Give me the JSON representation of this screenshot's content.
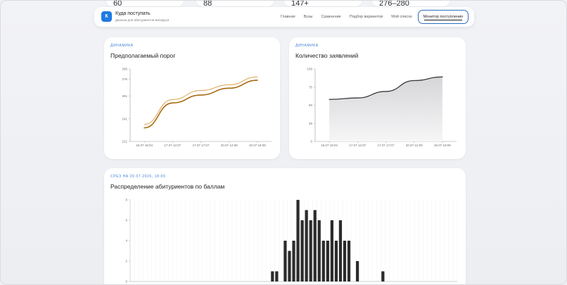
{
  "stats": [
    "60",
    "88",
    "147+",
    "276–280"
  ],
  "nav": {
    "logo_letter": "К",
    "title": "Куда поступать",
    "subtitle": "Данные для абитуриентов Беларуси",
    "links": [
      "Главная",
      "Вузы",
      "Сравнение",
      "Подбор вариантов",
      "Мой список"
    ],
    "active": "Монитор поступления"
  },
  "card1": {
    "eyebrow": "Динамика",
    "title": "Предполагаемый порог"
  },
  "card2": {
    "eyebrow": "Динамика",
    "title": "Количество заявлений"
  },
  "card3": {
    "eyebrow": "Срез на 20.07.2026, 18:09",
    "title": "Распределение абитуриентов по баллам"
  },
  "colors": {
    "accent": "#2a6fbf",
    "threshold_dark": "#a66a10",
    "threshold_light": "#d9a24e",
    "apps_line": "#3a3a3a",
    "bars": "#2b2b2b"
  },
  "chart_data": [
    {
      "type": "line",
      "title": "Предполагаемый порог",
      "x": [
        "16.07 18:04",
        "17.07 12:07",
        "17.07 17:07",
        "20.07 12:09",
        "20.07 18:09"
      ],
      "y_ticks": [
        221,
        241,
        261,
        276,
        285
      ],
      "ylim": [
        221,
        285
      ],
      "series": [
        {
          "values": [
            236,
            258,
            266,
            271,
            278
          ]
        },
        {
          "values": [
            233,
            255,
            262,
            268,
            275
          ]
        }
      ]
    },
    {
      "type": "area",
      "title": "Количество заявлений",
      "x": [
        "16.07 18:04",
        "17.07 12:07",
        "17.07 17:07",
        "20.07 12:09",
        "20.07 18:09"
      ],
      "y_ticks": [
        0,
        25,
        50,
        75,
        100
      ],
      "ylim": [
        0,
        100
      ],
      "series": [
        {
          "values": [
            58,
            60,
            69,
            84,
            89
          ]
        }
      ]
    },
    {
      "type": "bar",
      "title": "Распределение абитуриентов по баллам",
      "y_ticks": [
        0,
        2,
        4,
        6,
        8
      ],
      "ylim": [
        0,
        8
      ],
      "values": [
        0,
        0,
        0,
        0,
        0,
        0,
        0,
        0,
        0,
        0,
        0,
        0,
        0,
        0,
        0,
        0,
        0,
        0,
        0,
        0,
        0,
        0,
        0,
        0,
        0,
        0,
        0,
        0,
        0,
        0,
        0,
        0,
        0,
        1,
        1,
        0,
        4,
        3,
        4,
        8,
        6,
        7,
        6,
        7,
        6,
        4,
        4,
        6,
        4,
        6,
        4,
        4,
        0,
        2,
        0,
        0,
        0,
        0,
        0,
        1,
        0,
        0,
        0,
        0,
        0,
        0,
        0,
        0,
        0,
        0,
        0,
        0,
        0,
        0,
        0,
        0,
        0
      ]
    }
  ]
}
